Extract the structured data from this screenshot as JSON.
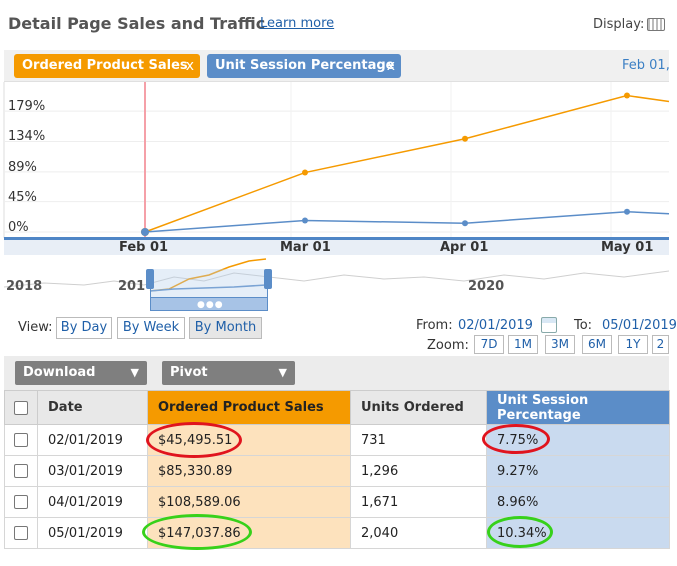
{
  "header": {
    "title": "Detail Page Sales and Traffic",
    "learn_more": "Learn more",
    "display_label": "Display:"
  },
  "chips": {
    "sales": "Ordered Product Sales",
    "usp": "Unit Session Percentage",
    "close": "x",
    "date_label": "Feb 01,"
  },
  "chart_data": {
    "type": "line",
    "categories": [
      "Feb 01",
      "Mar 01",
      "Apr 01",
      "May 01"
    ],
    "y_ticks": [
      "0%",
      "45%",
      "89%",
      "134%",
      "179%"
    ],
    "series": [
      {
        "name": "Ordered Product Sales",
        "values": [
          0,
          88,
          138,
          202
        ],
        "color": "#f59a00"
      },
      {
        "name": "Unit Session Percentage",
        "values": [
          0,
          17,
          13,
          30
        ],
        "color": "#5b8dc8"
      }
    ]
  },
  "navigator": {
    "years": [
      "2018",
      "201",
      "2020"
    ]
  },
  "view": {
    "label": "View:",
    "buttons": [
      "By Day",
      "By Week",
      "By Month"
    ],
    "active": "By Month"
  },
  "range": {
    "from_label": "From:",
    "from_value": "02/01/2019",
    "to_label": "To:",
    "to_value": "05/01/2019",
    "zoom_label": "Zoom:",
    "zoom_buttons": [
      "7D",
      "1M",
      "3M",
      "6M",
      "1Y",
      "2"
    ]
  },
  "toolbar": {
    "download": "Download",
    "pivot": "Pivot"
  },
  "table": {
    "headers": [
      "Date",
      "Ordered Product Sales",
      "Units Ordered",
      "Unit Session Percentage"
    ],
    "rows": [
      [
        "02/01/2019",
        "$45,495.51",
        "731",
        "7.75%"
      ],
      [
        "03/01/2019",
        "$85,330.89",
        "1,296",
        "9.27%"
      ],
      [
        "04/01/2019",
        "$108,589.06",
        "1,671",
        "8.96%"
      ],
      [
        "05/01/2019",
        "$147,037.86",
        "2,040",
        "10.34%"
      ]
    ]
  },
  "colors": {
    "sales": "#f59a00",
    "usp": "#5b8dc8",
    "annotation_red": "#e0141e",
    "annotation_green": "#37d11a"
  }
}
